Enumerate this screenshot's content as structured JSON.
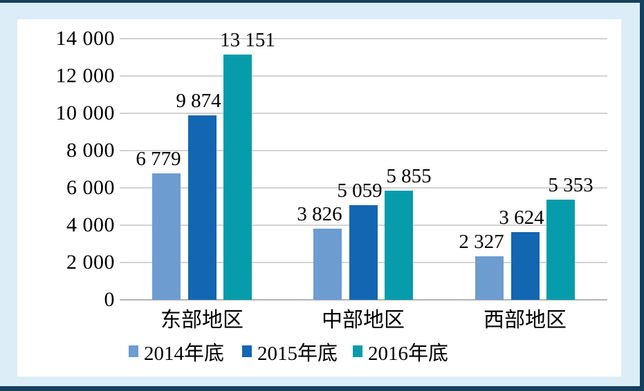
{
  "chart_data": {
    "type": "bar",
    "categories": [
      "东部地区",
      "中部地区",
      "西部地区"
    ],
    "series": [
      {
        "name": "2014年底",
        "color": "#6d9cd0",
        "values": [
          6779,
          3826,
          2327
        ],
        "labels": [
          "6 779",
          "3 826",
          "2 327"
        ]
      },
      {
        "name": "2015年底",
        "color": "#1366b1",
        "values": [
          9874,
          5059,
          3624
        ],
        "labels": [
          "9 874",
          "5 059",
          "3 624"
        ]
      },
      {
        "name": "2016年底",
        "color": "#069cab",
        "values": [
          13151,
          5855,
          5353
        ],
        "labels": [
          "13 151",
          "5 855",
          "5 353"
        ]
      }
    ],
    "y_axis": {
      "min": 0,
      "max": 14000,
      "step": 2000,
      "tick_values": [
        0,
        2000,
        4000,
        6000,
        8000,
        10000,
        12000,
        14000
      ],
      "tick_labels": [
        "0",
        "2 000",
        "4 000",
        "6 000",
        "8 000",
        "10 000",
        "12 000",
        "14 000"
      ]
    },
    "title": "",
    "xlabel": "",
    "ylabel": "",
    "grid": true,
    "legend_position": "bottom",
    "data_labels_shown": true
  },
  "colors": {
    "background": "#dcedf8",
    "border": "#14405e",
    "panel": "#ffffff",
    "gridline": "#d2d2d2",
    "axis_line": "#b3b3b3",
    "text": "#000000"
  }
}
